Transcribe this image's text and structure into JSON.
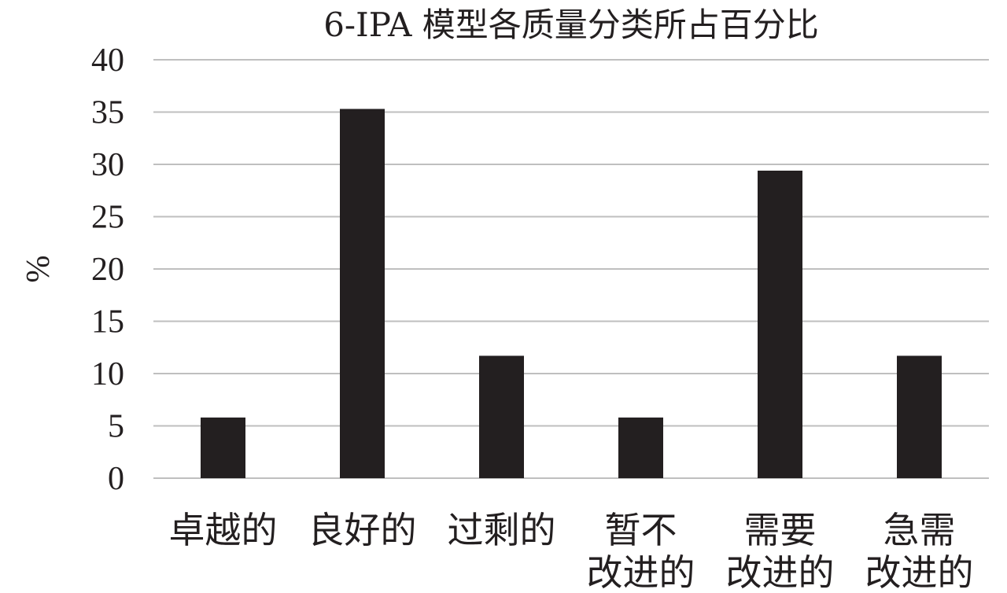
{
  "chart_data": {
    "type": "bar",
    "title": "6-IPA 模型各质量分类所占百分比",
    "xlabel": "",
    "ylabel": "%",
    "ylim": [
      0,
      40
    ],
    "yticks": [
      0,
      5,
      10,
      15,
      20,
      25,
      30,
      35,
      40
    ],
    "grid": true,
    "categories": [
      [
        "卓越的"
      ],
      [
        "良好的"
      ],
      [
        "过剩的"
      ],
      [
        "暂不",
        "改进的"
      ],
      [
        "需要",
        "改进的"
      ],
      [
        "急需",
        "改进的"
      ]
    ],
    "values": [
      5.8,
      35.3,
      11.7,
      5.8,
      29.4,
      11.7
    ],
    "colors": {
      "bar": "#231f20",
      "grid": "#bfbfbf",
      "text": "#231f20"
    }
  }
}
